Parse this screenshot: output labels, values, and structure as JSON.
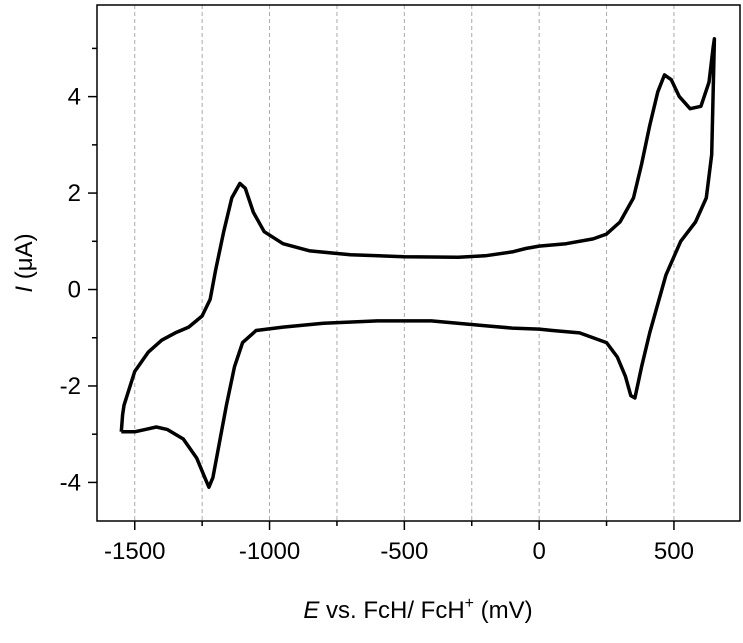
{
  "chart_data": {
    "type": "line",
    "x_label": [
      "E",
      " vs. FcH/ FcH",
      "+",
      " (mV)"
    ],
    "y_label": [
      "I",
      " (μA)"
    ],
    "xlim": [
      -1640,
      745
    ],
    "ylim": [
      -4.8,
      5.9
    ],
    "xticks": [
      -1500,
      -1000,
      -500,
      0,
      500
    ],
    "xminor": [
      -1250,
      -750,
      -250,
      250
    ],
    "yticks": [
      -4,
      -2,
      0,
      2,
      4
    ],
    "yminor": [
      -3,
      -1,
      1,
      3,
      5
    ],
    "grid": true,
    "series": [
      {
        "color": "#000000",
        "x": [
          -1550,
          -1545,
          -1540,
          -1500,
          -1450,
          -1400,
          -1350,
          -1300,
          -1250,
          -1220,
          -1200,
          -1170,
          -1140,
          -1110,
          -1090,
          -1060,
          -1020,
          -950,
          -850,
          -700,
          -500,
          -300,
          -200,
          -100,
          -50,
          0,
          100,
          200,
          250,
          300,
          350,
          380,
          410,
          440,
          465,
          490,
          520,
          560,
          600,
          630,
          645,
          650,
          640,
          620,
          580,
          525,
          470,
          440,
          410,
          380,
          355,
          340,
          320,
          290,
          250,
          150,
          50,
          0,
          -100,
          -200,
          -400,
          -600,
          -800,
          -950,
          -1050,
          -1100,
          -1130,
          -1160,
          -1190,
          -1210,
          -1225,
          -1240,
          -1270,
          -1320,
          -1380,
          -1420,
          -1460,
          -1500,
          -1550
        ],
        "values": [
          -2.95,
          -2.6,
          -2.4,
          -1.7,
          -1.3,
          -1.05,
          -0.9,
          -0.78,
          -0.55,
          -0.2,
          0.4,
          1.2,
          1.9,
          2.2,
          2.1,
          1.6,
          1.2,
          0.95,
          0.8,
          0.72,
          0.68,
          0.67,
          0.7,
          0.78,
          0.85,
          0.9,
          0.95,
          1.05,
          1.15,
          1.4,
          1.9,
          2.6,
          3.4,
          4.1,
          4.45,
          4.35,
          4.0,
          3.75,
          3.8,
          4.3,
          5.0,
          5.2,
          2.8,
          1.9,
          1.4,
          1.0,
          0.3,
          -0.3,
          -0.9,
          -1.6,
          -2.25,
          -2.2,
          -1.8,
          -1.4,
          -1.1,
          -0.9,
          -0.85,
          -0.82,
          -0.8,
          -0.75,
          -0.65,
          -0.65,
          -0.7,
          -0.78,
          -0.85,
          -1.1,
          -1.6,
          -2.4,
          -3.3,
          -3.9,
          -4.1,
          -3.9,
          -3.5,
          -3.1,
          -2.9,
          -2.85,
          -2.9,
          -2.95,
          -2.95
        ]
      }
    ]
  }
}
